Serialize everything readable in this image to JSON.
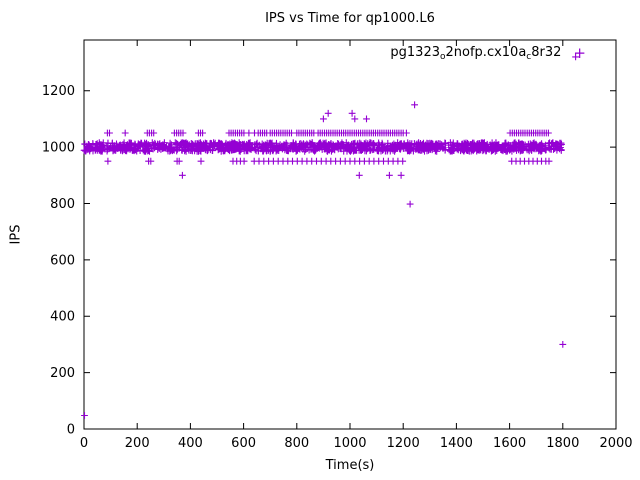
{
  "legend": {
    "parts": [
      {
        "text": "pg1323",
        "sub": false
      },
      {
        "text": "o",
        "sub": true
      },
      {
        "text": "2nofp.cx10a",
        "sub": false
      },
      {
        "text": "c",
        "sub": true
      },
      {
        "text": "8r32",
        "sub": false
      }
    ],
    "marker": "+"
  },
  "chart_data": {
    "type": "scatter",
    "title": "IPS vs Time for qp1000.L6",
    "xlabel": "Time(s)",
    "ylabel": "IPS",
    "xlim": [
      0,
      2000
    ],
    "ylim": [
      0,
      1380
    ],
    "xticks": [
      0,
      200,
      400,
      600,
      800,
      1000,
      1200,
      1400,
      1600,
      1800,
      2000
    ],
    "yticks": [
      0,
      200,
      400,
      600,
      800,
      1000,
      1200
    ],
    "grid": false,
    "legend_position": "top-right",
    "series_name": "pg1323_o2nofp.cx10a_c8r32",
    "marker": "plus",
    "color": "#9400d3",
    "dense_band": {
      "note": "solid band of overlapping plus markers at ~1000 IPS across the whole run",
      "x_min": 0,
      "x_max": 1795,
      "y_min": 985,
      "y_max": 1016,
      "n_points": 1300
    },
    "scatter_rows": [
      {
        "y": 1050,
        "xs": [
          88,
          96,
          155,
          238,
          246,
          254,
          262,
          340,
          348,
          356,
          364,
          372,
          430,
          438,
          446,
          545,
          553,
          561,
          569,
          577,
          585,
          593,
          601,
          620,
          641,
          655,
          663,
          671,
          679,
          687,
          700,
          708,
          716,
          724,
          732,
          740,
          748,
          756,
          764,
          772,
          780,
          800,
          808,
          816,
          824,
          832,
          840,
          848,
          856,
          864,
          880,
          888,
          896,
          904,
          912,
          920,
          928,
          936,
          944,
          952,
          960,
          968,
          976,
          984,
          992,
          1000,
          1008,
          1016,
          1024,
          1032,
          1040,
          1048,
          1056,
          1064,
          1072,
          1080,
          1088,
          1096,
          1104,
          1112,
          1120,
          1128,
          1136,
          1144,
          1152,
          1160,
          1168,
          1176,
          1184,
          1192,
          1200,
          1212,
          1602,
          1610,
          1618,
          1626,
          1634,
          1642,
          1650,
          1658,
          1666,
          1674,
          1682,
          1690,
          1698,
          1706,
          1714,
          1722,
          1730,
          1738,
          1746
        ]
      },
      {
        "y": 950,
        "xs": [
          90,
          243,
          251,
          350,
          358,
          440,
          560,
          574,
          588,
          602,
          640,
          658,
          676,
          694,
          712,
          730,
          748,
          766,
          784,
          802,
          820,
          838,
          856,
          874,
          892,
          910,
          928,
          946,
          964,
          982,
          1000,
          1018,
          1036,
          1054,
          1072,
          1090,
          1108,
          1126,
          1144,
          1162,
          1180,
          1198,
          1608,
          1624,
          1640,
          1656,
          1672,
          1688,
          1704,
          1720,
          1736,
          1748
        ]
      },
      {
        "y": 900,
        "xs": [
          370,
          1035,
          1148,
          1192
        ]
      },
      {
        "y": 1100,
        "xs": [
          900,
          1018,
          1062
        ]
      },
      {
        "y": 1120,
        "xs": [
          918,
          1008
        ]
      }
    ],
    "outliers": [
      [
        1243,
        1150
      ],
      [
        1226,
        798
      ],
      [
        1800,
        300
      ],
      [
        1848,
        1320
      ],
      [
        2,
        48
      ]
    ]
  }
}
